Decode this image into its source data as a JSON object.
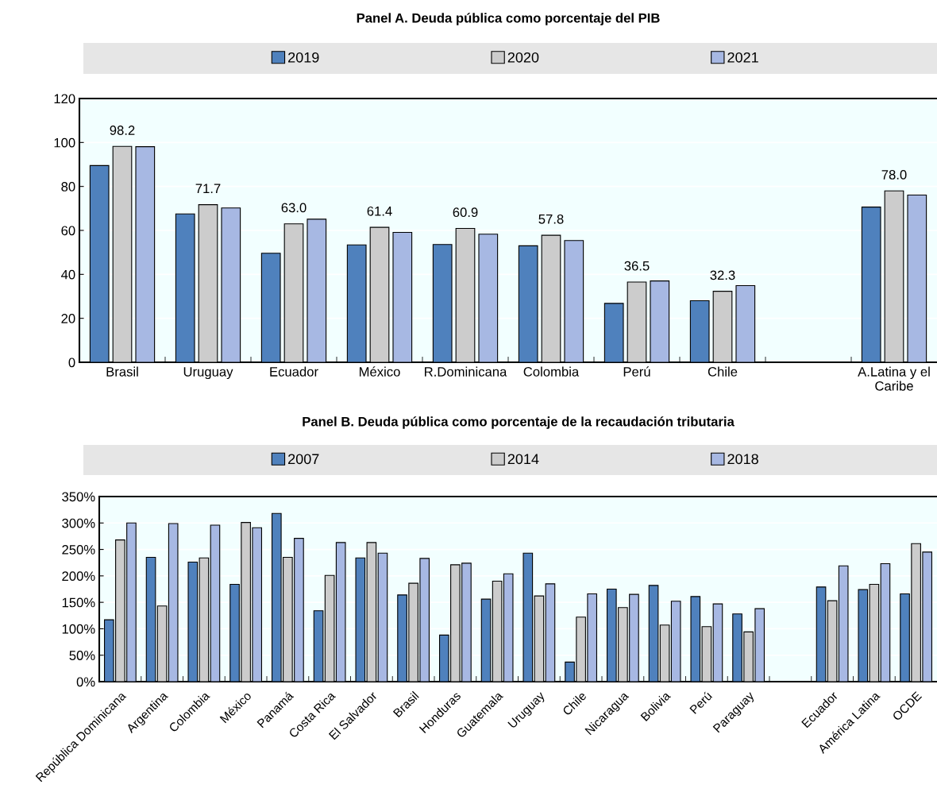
{
  "chart_data": [
    {
      "type": "bar",
      "title": "Panel A. Deuda pública como porcentaje del PIB",
      "categories": [
        "Brasil",
        "Uruguay",
        "Ecuador",
        "México",
        "R.Dominicana",
        "Colombia",
        "Perú",
        "Chile",
        null,
        "A.Latina y el\nCaribe"
      ],
      "series": [
        {
          "name": "2019",
          "color": "#4f81bd",
          "values": [
            89.5,
            67.5,
            49.6,
            53.4,
            53.6,
            53.0,
            26.8,
            28.0,
            null,
            70.6
          ]
        },
        {
          "name": "2020",
          "color": "#cccccc",
          "values": [
            98.2,
            71.7,
            63.0,
            61.4,
            60.9,
            57.8,
            36.5,
            32.3,
            null,
            78.0
          ],
          "value_labels": [
            "98.2",
            "71.7",
            "63.0",
            "61.4",
            "60.9",
            "57.8",
            "36.5",
            "32.3",
            null,
            "78.0"
          ]
        },
        {
          "name": "2021",
          "color": "#a7b8e3",
          "values": [
            98.1,
            70.2,
            65.1,
            59.1,
            58.3,
            55.4,
            37.0,
            34.9,
            null,
            76.1
          ]
        }
      ],
      "ylim": [
        0,
        120
      ],
      "yticks": [
        0,
        20,
        40,
        60,
        80,
        100,
        120
      ],
      "grid": "y",
      "legend": "top"
    },
    {
      "type": "bar",
      "title": "Panel B. Deuda pública como porcentaje de la recaudación tributaria",
      "categories": [
        "República Dominicana",
        "Argentina",
        "Colombia",
        "México",
        "Panamá",
        "Costa Rica",
        "El Salvador",
        "Brasil",
        "Honduras",
        "Guatemala",
        "Uruguay",
        "Chile",
        "Nicaragua",
        "Bolivia",
        "Perú",
        "Paraguay",
        null,
        "Ecuador",
        "América Latina",
        "OCDE"
      ],
      "series": [
        {
          "name": "2007",
          "color": "#4f81bd",
          "values": [
            117,
            235,
            226,
            184,
            318,
            134,
            234,
            164,
            88,
            156,
            243,
            37,
            175,
            182,
            161,
            128,
            null,
            179,
            174,
            166
          ]
        },
        {
          "name": "2014",
          "color": "#cccccc",
          "values": [
            268,
            143,
            234,
            301,
            235,
            201,
            263,
            186,
            221,
            190,
            162,
            122,
            140,
            107,
            104,
            94,
            null,
            153,
            184,
            261
          ]
        },
        {
          "name": "2018",
          "color": "#a7b8e3",
          "values": [
            300,
            299,
            296,
            291,
            271,
            263,
            243,
            233,
            224,
            204,
            185,
            166,
            165,
            152,
            147,
            138,
            null,
            219,
            223,
            245
          ]
        }
      ],
      "ylim": [
        0,
        350
      ],
      "yticks": [
        {
          "value": 0,
          "label": "0%"
        },
        {
          "value": 50,
          "label": "50%"
        },
        {
          "value": 100,
          "label": "100%"
        },
        {
          "value": 150,
          "label": "150%"
        },
        {
          "value": 200,
          "label": "200%"
        },
        {
          "value": 250,
          "label": "250%"
        },
        {
          "value": 300,
          "label": "300%"
        },
        {
          "value": 350,
          "label": "350%"
        }
      ],
      "grid": "y",
      "legend": "top"
    }
  ]
}
